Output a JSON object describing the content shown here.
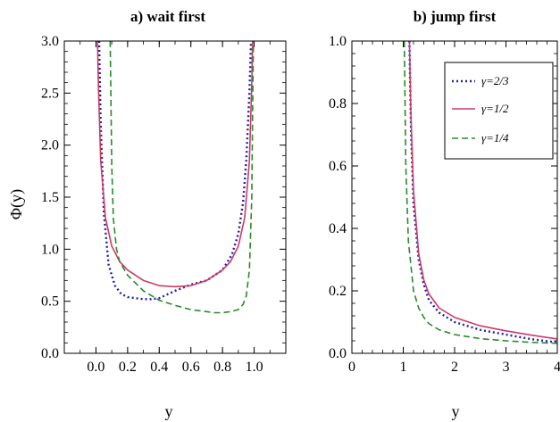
{
  "colors": {
    "gamma_2_3": "#2020a8",
    "gamma_1_2": "#cc3b64",
    "gamma_1_4": "#2a8a2a",
    "axis": "#000000"
  },
  "chart_data": [
    {
      "type": "line",
      "title": "a)   wait first",
      "xlabel": "y",
      "ylabel": "Φ(y)",
      "xlim": [
        -0.2,
        1.2
      ],
      "ylim": [
        0,
        3
      ],
      "xticks": [
        "0.0",
        "0.2",
        "0.4",
        "0.6",
        "0.8",
        "1.0"
      ],
      "xtick_values": [
        0,
        0.2,
        0.4,
        0.6,
        0.8,
        1.0
      ],
      "yticks": [
        "0.0",
        "0.5",
        "1.0",
        "1.5",
        "2.0",
        "2.5",
        "3.0"
      ],
      "ytick_values": [
        0,
        0.5,
        1.0,
        1.5,
        2.0,
        2.5,
        3.0
      ],
      "series": [
        {
          "name": "γ=2/3",
          "style": "dotted",
          "x": [
            0.02,
            0.03,
            0.05,
            0.08,
            0.12,
            0.16,
            0.2,
            0.25,
            0.3,
            0.35,
            0.4,
            0.5,
            0.6,
            0.7,
            0.8,
            0.86,
            0.9,
            0.93,
            0.95,
            0.97,
            0.98
          ],
          "y": [
            3.0,
            2.2,
            1.35,
            0.85,
            0.65,
            0.57,
            0.54,
            0.53,
            0.52,
            0.52,
            0.53,
            0.6,
            0.66,
            0.7,
            0.8,
            0.95,
            1.15,
            1.45,
            1.85,
            2.5,
            3.0
          ]
        },
        {
          "name": "γ=1/2",
          "style": "solid",
          "x": [
            0.01,
            0.015,
            0.03,
            0.06,
            0.1,
            0.15,
            0.2,
            0.3,
            0.4,
            0.5,
            0.6,
            0.7,
            0.8,
            0.85,
            0.9,
            0.94,
            0.97,
            0.985,
            0.99
          ],
          "y": [
            3.0,
            2.6,
            1.85,
            1.3,
            1.03,
            0.88,
            0.8,
            0.7,
            0.65,
            0.64,
            0.65,
            0.7,
            0.8,
            0.88,
            1.03,
            1.3,
            1.85,
            2.6,
            3.0
          ]
        },
        {
          "name": "γ=1/4",
          "style": "dashed",
          "x": [
            0.09,
            0.095,
            0.1,
            0.11,
            0.13,
            0.15,
            0.2,
            0.3,
            0.4,
            0.5,
            0.6,
            0.7,
            0.75,
            0.8,
            0.85,
            0.9,
            0.93,
            0.95,
            0.97,
            0.985,
            0.99,
            0.995
          ],
          "y": [
            3.0,
            2.4,
            1.8,
            1.3,
            1.0,
            0.88,
            0.75,
            0.6,
            0.51,
            0.46,
            0.42,
            0.4,
            0.39,
            0.39,
            0.4,
            0.42,
            0.47,
            0.55,
            0.8,
            1.5,
            2.3,
            3.0
          ]
        }
      ]
    },
    {
      "type": "line",
      "title": "b)   jump first",
      "xlabel": "y",
      "ylabel": "",
      "xlim": [
        0,
        4
      ],
      "ylim": [
        0,
        1
      ],
      "xticks": [
        "0",
        "1",
        "2",
        "3",
        "4"
      ],
      "xtick_values": [
        0,
        1,
        2,
        3,
        4
      ],
      "yticks": [
        "0.0",
        "0.2",
        "0.4",
        "0.6",
        "0.8",
        "1.0"
      ],
      "ytick_values": [
        0,
        0.2,
        0.4,
        0.6,
        0.8,
        1.0
      ],
      "legend_position": "top-right",
      "series": [
        {
          "name": "γ=2/3",
          "style": "dotted",
          "x": [
            1.12,
            1.15,
            1.2,
            1.3,
            1.4,
            1.5,
            1.7,
            2.0,
            2.5,
            3.0,
            3.5,
            4.0
          ],
          "y": [
            1.0,
            0.72,
            0.48,
            0.3,
            0.22,
            0.17,
            0.13,
            0.1,
            0.075,
            0.06,
            0.045,
            0.035
          ]
        },
        {
          "name": "γ=1/2",
          "style": "solid",
          "x": [
            1.12,
            1.15,
            1.2,
            1.3,
            1.4,
            1.5,
            1.7,
            2.0,
            2.5,
            3.0,
            3.5,
            4.0
          ],
          "y": [
            1.0,
            0.76,
            0.52,
            0.32,
            0.235,
            0.19,
            0.145,
            0.115,
            0.088,
            0.072,
            0.058,
            0.046
          ]
        },
        {
          "name": "γ=1/4",
          "style": "dashed",
          "x": [
            1.02,
            1.05,
            1.1,
            1.2,
            1.3,
            1.4,
            1.5,
            1.7,
            2.0,
            2.5,
            3.0,
            3.5,
            4.0
          ],
          "y": [
            1.0,
            0.6,
            0.36,
            0.2,
            0.145,
            0.115,
            0.095,
            0.075,
            0.06,
            0.047,
            0.04,
            0.035,
            0.032
          ]
        }
      ]
    }
  ]
}
